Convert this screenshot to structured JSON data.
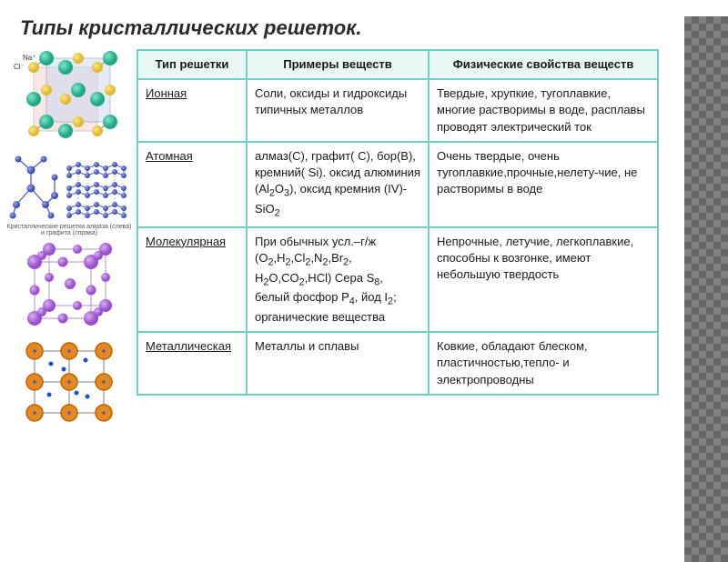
{
  "title": "Типы кристаллических решеток.",
  "diagrams": {
    "atomic_caption": "Кристаллические решетки алмаза (слева) и графита (справа)"
  },
  "colors": {
    "border": "#6fd0c8",
    "header_bg": "#e9f7f5",
    "cell_bg": "#ffffff",
    "text": "#1a1a1a"
  },
  "table": {
    "type": "table",
    "columns": [
      "Тип решетки",
      "Примеры веществ",
      "Физические свойства веществ"
    ],
    "rows": [
      {
        "type": "Ионная",
        "examples": "Соли, оксиды и гидроксиды типичных металлов",
        "properties": "Твердые, хрупкие, тугоплавкие, многие растворимы в воде, расплавы проводят электрический ток"
      },
      {
        "type": "Атомная",
        "examples_html": "алмаз(C), графит( C), бор(B), кремний( Si). оксид алюминия (Al<sub>2</sub>O<sub>3</sub>), оксид кремния (IV)-SiO<sub>2</sub>",
        "properties": "Очень твердые, очень тугоплавкие,прочные,нелету-чие, не растворимы в воде"
      },
      {
        "type": "Молекулярная",
        "examples_html": "При обычных усл.–г/ж (O<sub>2</sub>,H<sub>2</sub>,Cl<sub>2</sub>,N<sub>2</sub>,Br<sub>2</sub>, H<sub>2</sub>O,CO<sub>2</sub>,HCl) Сера S<sub>8</sub>, белый фосфор P<sub>4</sub>, йод I<sub>2</sub>; органические вещества",
        "properties": "Непрочные, летучие, легкоплавкие, способны к возгонке, имеют небольшую твердость"
      },
      {
        "type": "Металлическая",
        "examples": "Металлы и сплавы",
        "properties": "Ковкие, обладают блеском, пластичностью,тепло- и электропроводны"
      }
    ]
  }
}
